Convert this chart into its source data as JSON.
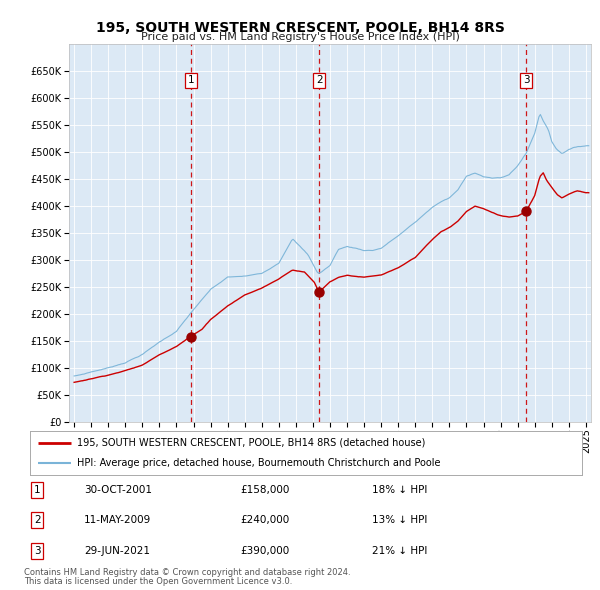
{
  "title": "195, SOUTH WESTERN CRESCENT, POOLE, BH14 8RS",
  "subtitle": "Price paid vs. HM Land Registry's House Price Index (HPI)",
  "plot_bg_color": "#dce9f5",
  "outer_bg_color": "#ffffff",
  "hpi_color": "#7ab4d8",
  "price_color": "#cc0000",
  "sale_marker_color": "#990000",
  "vline_color": "#cc0000",
  "sale_events": [
    {
      "label": "1",
      "date_x": 2001.83,
      "price": 158000,
      "pct": "18% ↓ HPI",
      "date_str": "30-OCT-2001",
      "price_str": "£158,000"
    },
    {
      "label": "2",
      "date_x": 2009.36,
      "price": 240000,
      "pct": "13% ↓ HPI",
      "date_str": "11-MAY-2009",
      "price_str": "£240,000"
    },
    {
      "label": "3",
      "date_x": 2021.49,
      "price": 390000,
      "pct": "21% ↓ HPI",
      "date_str": "29-JUN-2021",
      "price_str": "£390,000"
    }
  ],
  "legend_line1": "195, SOUTH WESTERN CRESCENT, POOLE, BH14 8RS (detached house)",
  "legend_line2": "HPI: Average price, detached house, Bournemouth Christchurch and Poole",
  "footer_line1": "Contains HM Land Registry data © Crown copyright and database right 2024.",
  "footer_line2": "This data is licensed under the Open Government Licence v3.0.",
  "ylim": [
    0,
    700000
  ],
  "yticks": [
    0,
    50000,
    100000,
    150000,
    200000,
    250000,
    300000,
    350000,
    400000,
    450000,
    500000,
    550000,
    600000,
    650000
  ],
  "xlim_start": 1994.7,
  "xlim_end": 2025.3
}
